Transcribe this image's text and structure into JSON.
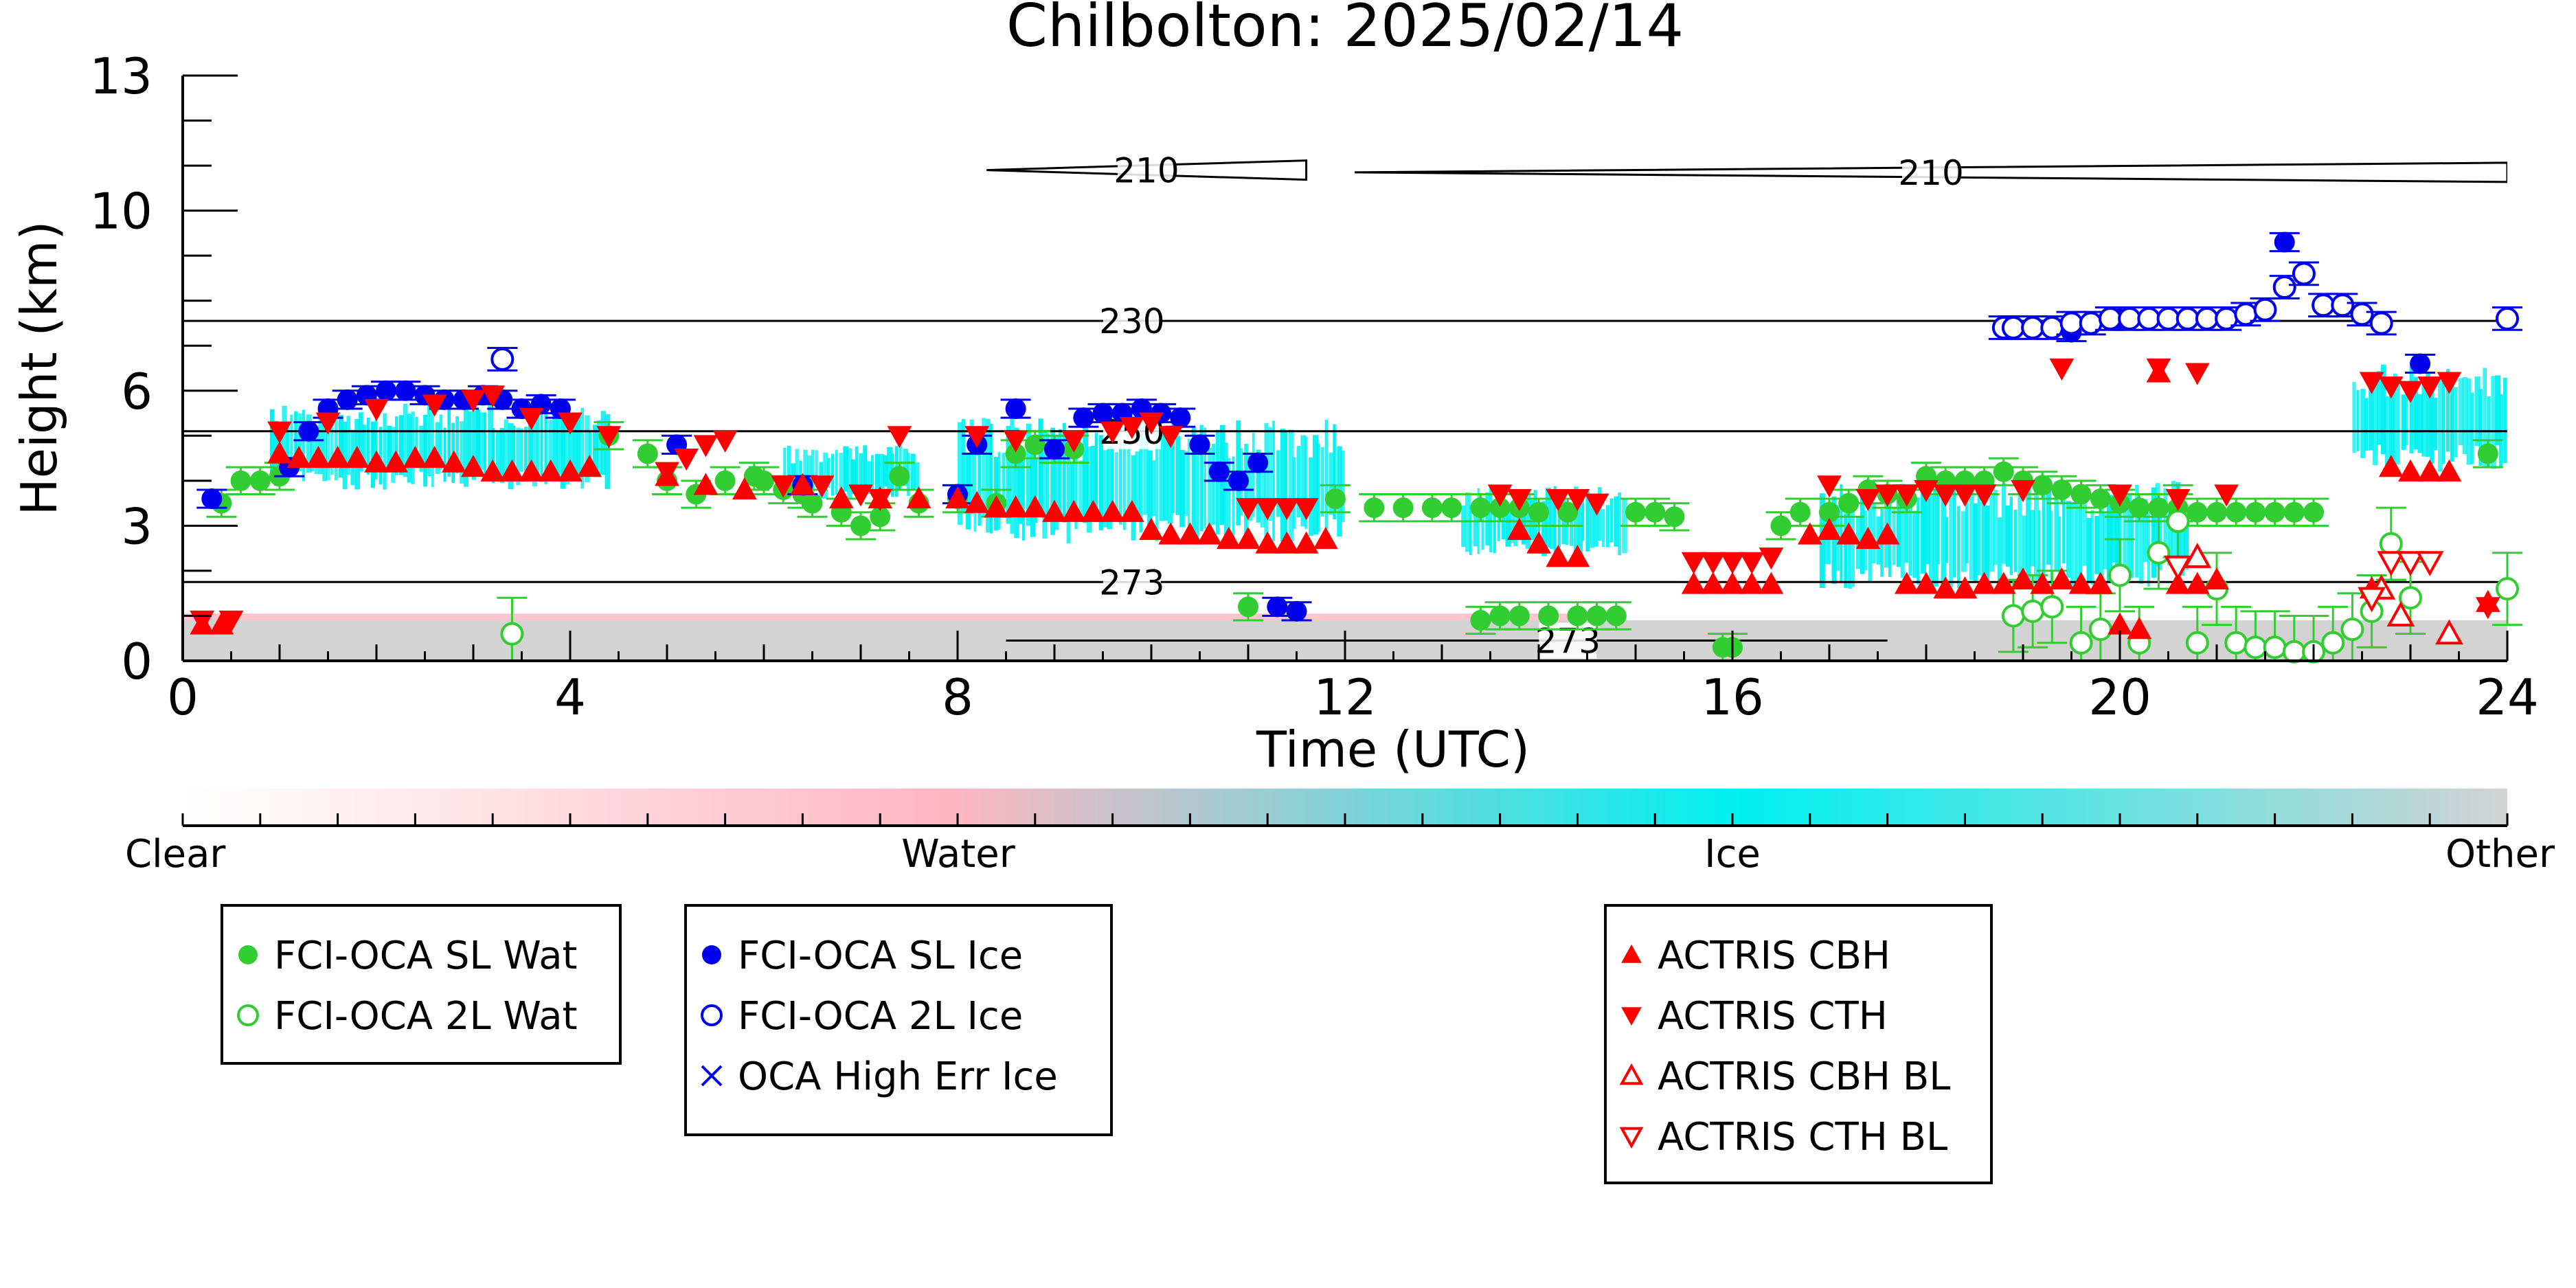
{
  "chart_data": {
    "type": "scatter",
    "title": "Chilbolton: 2025/02/14",
    "xlabel": "Time (UTC)",
    "ylabel": "Height (km)",
    "xlim": [
      0,
      24
    ],
    "ylim": [
      0,
      13
    ],
    "xticks": [
      0,
      4,
      8,
      12,
      16,
      20,
      24
    ],
    "yticks": [
      0,
      3,
      6,
      10,
      13
    ],
    "grid": false,
    "background_field": {
      "description_classes": [
        "Clear",
        "Water",
        "Ice",
        "Other"
      ],
      "colors": {
        "clear": "#ffffff",
        "water": "#ffb6c1",
        "ice": "#00f0f0",
        "other": "#d3d3d3"
      },
      "ice_regions": [
        {
          "t0": 0.9,
          "t1": 4.4,
          "bottom": 3.8,
          "top": 5.8
        },
        {
          "t0": 6.2,
          "t1": 7.6,
          "bottom": 3.6,
          "top": 4.8
        },
        {
          "t0": 8.0,
          "t1": 12.0,
          "bottom": 2.6,
          "top": 5.4
        },
        {
          "t0": 13.2,
          "t1": 14.9,
          "bottom": 2.3,
          "top": 3.9
        },
        {
          "t0": 16.9,
          "t1": 20.7,
          "bottom": 1.6,
          "top": 4.0
        },
        {
          "t0": 22.4,
          "t1": 24.0,
          "bottom": 4.2,
          "top": 6.6
        }
      ],
      "other_layer": {
        "t0": 0,
        "t1": 24,
        "top": 0.9
      }
    },
    "contours": [
      {
        "label": "210",
        "segments": [
          {
            "x0": 8.3,
            "x1": 11.6,
            "y": 10.9
          },
          {
            "x0": 12.1,
            "x1": 24.0,
            "y": 10.85
          }
        ]
      },
      {
        "label": "230",
        "segments": [
          {
            "x0": 0,
            "x1": 24,
            "y": 7.55
          }
        ]
      },
      {
        "label": "250",
        "segments": [
          {
            "x0": 0,
            "x1": 24,
            "y": 5.1
          }
        ]
      },
      {
        "label": "273",
        "segments": [
          {
            "x0": 0,
            "x1": 24,
            "y": 1.75
          }
        ]
      },
      {
        "label": "273",
        "segments": [
          {
            "x0": 8.5,
            "x1": 17.6,
            "y": 0.45
          }
        ]
      }
    ],
    "series": [
      {
        "name": "FCI-OCA SL Wat",
        "marker": "filled-circle",
        "color": "#32cd32",
        "x": [
          0.4,
          0.6,
          0.8,
          1.0,
          4.4,
          4.8,
          5.0,
          5.3,
          5.6,
          5.9,
          6.0,
          6.2,
          6.4,
          6.5,
          6.8,
          7.0,
          7.2,
          7.4,
          7.6,
          8.0,
          8.4,
          8.6,
          8.8,
          9.0,
          9.2,
          11.9,
          12.3,
          12.6,
          12.9,
          13.1,
          13.4,
          13.6,
          13.8,
          14.0,
          14.3,
          15.0,
          15.2,
          15.4,
          16.5,
          16.7,
          17.0,
          17.2,
          17.4,
          17.6,
          17.8,
          18.0,
          18.2,
          18.4,
          18.6,
          18.8,
          19.0,
          19.2,
          19.4,
          19.6,
          19.8,
          20.0,
          20.2,
          20.4,
          20.6,
          20.8,
          21.0,
          21.2,
          21.4,
          21.6,
          21.8,
          22.0,
          23.8,
          11.0,
          13.4,
          13.6,
          13.8,
          14.1,
          14.4,
          14.6,
          14.8,
          15.9,
          16.0
        ],
        "y": [
          3.5,
          4.0,
          4.0,
          4.1,
          5.0,
          4.6,
          4.0,
          3.7,
          4.0,
          4.1,
          4.0,
          3.8,
          3.7,
          3.5,
          3.3,
          3.0,
          3.2,
          4.1,
          3.5,
          3.6,
          3.5,
          4.6,
          4.8,
          4.7,
          4.7,
          3.6,
          3.4,
          3.4,
          3.4,
          3.4,
          3.4,
          3.4,
          3.4,
          3.3,
          3.3,
          3.3,
          3.3,
          3.2,
          3.0,
          3.3,
          3.3,
          3.5,
          3.8,
          3.7,
          3.6,
          4.1,
          4.0,
          4.0,
          4.0,
          4.2,
          4.0,
          3.9,
          3.8,
          3.7,
          3.6,
          3.5,
          3.4,
          3.4,
          3.4,
          3.3,
          3.3,
          3.3,
          3.3,
          3.3,
          3.3,
          3.3,
          4.6,
          1.2,
          0.9,
          1.0,
          1.0,
          1.0,
          1.0,
          1.0,
          1.0,
          0.3,
          0.3
        ],
        "y_err": 0.3
      },
      {
        "name": "FCI-OCA 2L Wat",
        "marker": "open-circle",
        "color": "#32cd32",
        "x": [
          3.4,
          18.9,
          19.1,
          19.3,
          19.6,
          19.8,
          20.0,
          20.2,
          20.4,
          20.6,
          20.8,
          21.0,
          21.2,
          21.4,
          21.6,
          21.8,
          22.0,
          22.2,
          22.4,
          22.6,
          22.8,
          23.0,
          24.0
        ],
        "y": [
          0.6,
          1.0,
          1.1,
          1.2,
          0.4,
          0.7,
          1.9,
          0.4,
          2.4,
          3.1,
          0.4,
          1.6,
          0.4,
          0.3,
          0.3,
          0.2,
          0.2,
          0.4,
          0.7,
          1.1,
          2.6,
          1.4,
          1.6
        ],
        "y_err": 0.8
      },
      {
        "name": "FCI-OCA SL Ice",
        "marker": "filled-circle",
        "color": "#0000ee",
        "x": [
          0.3,
          1.1,
          1.3,
          1.5,
          1.7,
          1.9,
          2.1,
          2.3,
          2.5,
          2.7,
          2.9,
          3.1,
          3.3,
          3.5,
          3.7,
          3.9,
          5.1,
          6.4,
          8.0,
          8.2,
          8.6,
          9.0,
          9.3,
          9.5,
          9.7,
          9.9,
          10.1,
          10.3,
          10.5,
          10.7,
          10.9,
          11.1,
          11.3,
          11.5,
          19.5,
          20.0,
          21.7,
          23.1
        ],
        "y": [
          3.6,
          4.3,
          5.1,
          5.6,
          5.8,
          5.9,
          6.0,
          6.0,
          5.9,
          5.8,
          5.8,
          5.9,
          5.8,
          5.6,
          5.7,
          5.6,
          4.8,
          3.9,
          3.7,
          4.8,
          5.6,
          4.7,
          5.4,
          5.5,
          5.5,
          5.6,
          5.5,
          5.4,
          4.8,
          4.2,
          4.0,
          4.4,
          1.2,
          1.1,
          7.3,
          7.6,
          9.3,
          6.6
        ],
        "y_err": 0.2
      },
      {
        "name": "FCI-OCA 2L Ice",
        "marker": "open-circle",
        "color": "#0000ee",
        "x": [
          3.3,
          18.8,
          18.9,
          19.1,
          19.3,
          19.5,
          19.7,
          19.9,
          20.1,
          20.3,
          20.5,
          20.7,
          20.9,
          21.1,
          21.3,
          21.5,
          21.7,
          21.9,
          22.1,
          22.3,
          22.5,
          22.7,
          24.0
        ],
        "y": [
          6.7,
          7.4,
          7.4,
          7.4,
          7.4,
          7.5,
          7.5,
          7.6,
          7.6,
          7.6,
          7.6,
          7.6,
          7.6,
          7.6,
          7.7,
          7.8,
          8.3,
          8.6,
          7.9,
          7.9,
          7.7,
          7.5,
          7.6
        ],
        "y_err": 0.25
      },
      {
        "name": "OCA High Err Ice",
        "marker": "x",
        "color": "#0000ee",
        "x": [],
        "y": []
      },
      {
        "name": "ACTRIS CBH",
        "marker": "filled-triangle-up",
        "color": "#ff0000",
        "x": [
          0.2,
          0.4,
          1.0,
          1.2,
          1.4,
          1.6,
          1.8,
          2.0,
          2.2,
          2.4,
          2.6,
          2.8,
          3.0,
          3.2,
          3.4,
          3.6,
          3.8,
          4.0,
          4.2,
          5.0,
          5.4,
          5.8,
          6.4,
          6.8,
          7.2,
          7.6,
          8.0,
          8.2,
          8.4,
          8.6,
          8.8,
          9.0,
          9.2,
          9.4,
          9.6,
          9.8,
          10.0,
          10.2,
          10.4,
          10.6,
          10.8,
          11.0,
          11.2,
          11.4,
          11.6,
          11.8,
          13.8,
          14.0,
          14.2,
          14.4,
          15.6,
          15.8,
          16.0,
          16.2,
          16.4,
          16.8,
          17.0,
          17.2,
          17.4,
          17.6,
          17.8,
          18.0,
          18.2,
          18.4,
          18.6,
          18.8,
          19.0,
          19.2,
          19.4,
          19.6,
          19.8,
          20.0,
          20.2,
          20.4,
          20.6,
          20.8,
          21.0,
          22.6,
          22.8,
          23.0,
          23.2,
          23.4,
          23.8
        ],
        "y": [
          0.8,
          0.8,
          4.6,
          4.5,
          4.5,
          4.5,
          4.5,
          4.4,
          4.4,
          4.5,
          4.5,
          4.4,
          4.3,
          4.2,
          4.2,
          4.2,
          4.2,
          4.2,
          4.3,
          4.1,
          3.9,
          3.8,
          3.9,
          3.6,
          3.6,
          3.6,
          3.6,
          3.5,
          3.4,
          3.4,
          3.4,
          3.3,
          3.3,
          3.3,
          3.3,
          3.3,
          2.9,
          2.8,
          2.8,
          2.8,
          2.7,
          2.7,
          2.6,
          2.6,
          2.6,
          2.7,
          2.9,
          2.6,
          2.3,
          2.3,
          1.7,
          1.7,
          1.7,
          1.7,
          1.7,
          2.8,
          2.9,
          2.8,
          2.7,
          2.8,
          1.7,
          1.7,
          1.6,
          1.6,
          1.7,
          1.7,
          1.8,
          1.7,
          1.8,
          1.7,
          1.7,
          0.8,
          0.7,
          6.4,
          1.7,
          1.7,
          1.8,
          1.6,
          4.3,
          4.2,
          4.2,
          4.2,
          1.3
        ],
        "y_err": 0
      },
      {
        "name": "ACTRIS CTH",
        "marker": "filled-triangle-down",
        "color": "#ff0000",
        "x": [
          0.2,
          0.5,
          1.0,
          1.5,
          2.0,
          2.6,
          3.0,
          3.2,
          3.6,
          4.0,
          4.4,
          5.0,
          5.2,
          5.4,
          5.6,
          6.2,
          6.6,
          7.0,
          7.2,
          7.4,
          8.2,
          8.6,
          9.2,
          9.6,
          9.8,
          10.0,
          10.2,
          11.0,
          11.2,
          11.4,
          11.6,
          13.6,
          13.8,
          14.2,
          14.4,
          14.6,
          15.6,
          15.8,
          16.0,
          16.2,
          16.4,
          17.0,
          17.4,
          17.6,
          17.8,
          18.0,
          18.2,
          18.4,
          18.6,
          19.0,
          19.4,
          20.0,
          20.4,
          20.6,
          20.8,
          21.1,
          22.6,
          22.8,
          23.0,
          23.2,
          23.4,
          23.8
        ],
        "y": [
          0.9,
          0.9,
          5.1,
          5.3,
          5.6,
          5.7,
          5.8,
          5.9,
          5.4,
          5.3,
          5.0,
          4.2,
          4.5,
          4.8,
          4.9,
          3.9,
          3.9,
          3.7,
          3.6,
          5.0,
          5.0,
          4.9,
          4.9,
          5.1,
          5.2,
          5.3,
          5.0,
          3.4,
          3.4,
          3.4,
          3.4,
          3.7,
          3.6,
          3.6,
          3.6,
          3.5,
          2.2,
          2.2,
          2.2,
          2.2,
          2.3,
          3.9,
          3.6,
          3.7,
          3.7,
          3.8,
          3.7,
          3.7,
          3.7,
          3.8,
          6.5,
          3.7,
          6.5,
          3.6,
          6.4,
          3.7,
          6.2,
          6.1,
          6.0,
          6.1,
          6.2,
          1.2
        ],
        "y_err": 0
      },
      {
        "name": "ACTRIS CBH BL",
        "marker": "open-triangle-up",
        "color": "#ff0000",
        "x": [
          20.8,
          22.7,
          22.9,
          23.4
        ],
        "y": [
          2.3,
          1.6,
          1.0,
          0.6
        ],
        "y_err": 0
      },
      {
        "name": "ACTRIS CTH BL",
        "marker": "open-triangle-down",
        "color": "#ff0000",
        "x": [
          20.6,
          22.6,
          22.8,
          23.0,
          23.2
        ],
        "y": [
          2.1,
          1.4,
          2.2,
          2.2,
          2.2
        ],
        "y_err": 0
      }
    ],
    "colorbar": {
      "labels": [
        "Clear",
        "Water",
        "Ice",
        "Other"
      ],
      "stops": [
        {
          "offset": 0.0,
          "color": "#ffffff"
        },
        {
          "offset": 0.33,
          "color": "#ffb6c1"
        },
        {
          "offset": 0.67,
          "color": "#00f0f0"
        },
        {
          "offset": 1.0,
          "color": "#d3d3d3"
        }
      ]
    },
    "legends": [
      {
        "entries": [
          "FCI-OCA SL Wat",
          "FCI-OCA 2L Wat"
        ]
      },
      {
        "entries": [
          "FCI-OCA SL Ice",
          "FCI-OCA 2L Ice",
          "OCA High Err Ice"
        ]
      },
      {
        "entries": [
          "ACTRIS CBH",
          "ACTRIS CTH",
          "ACTRIS CBH BL",
          "ACTRIS CTH BL"
        ]
      }
    ]
  }
}
